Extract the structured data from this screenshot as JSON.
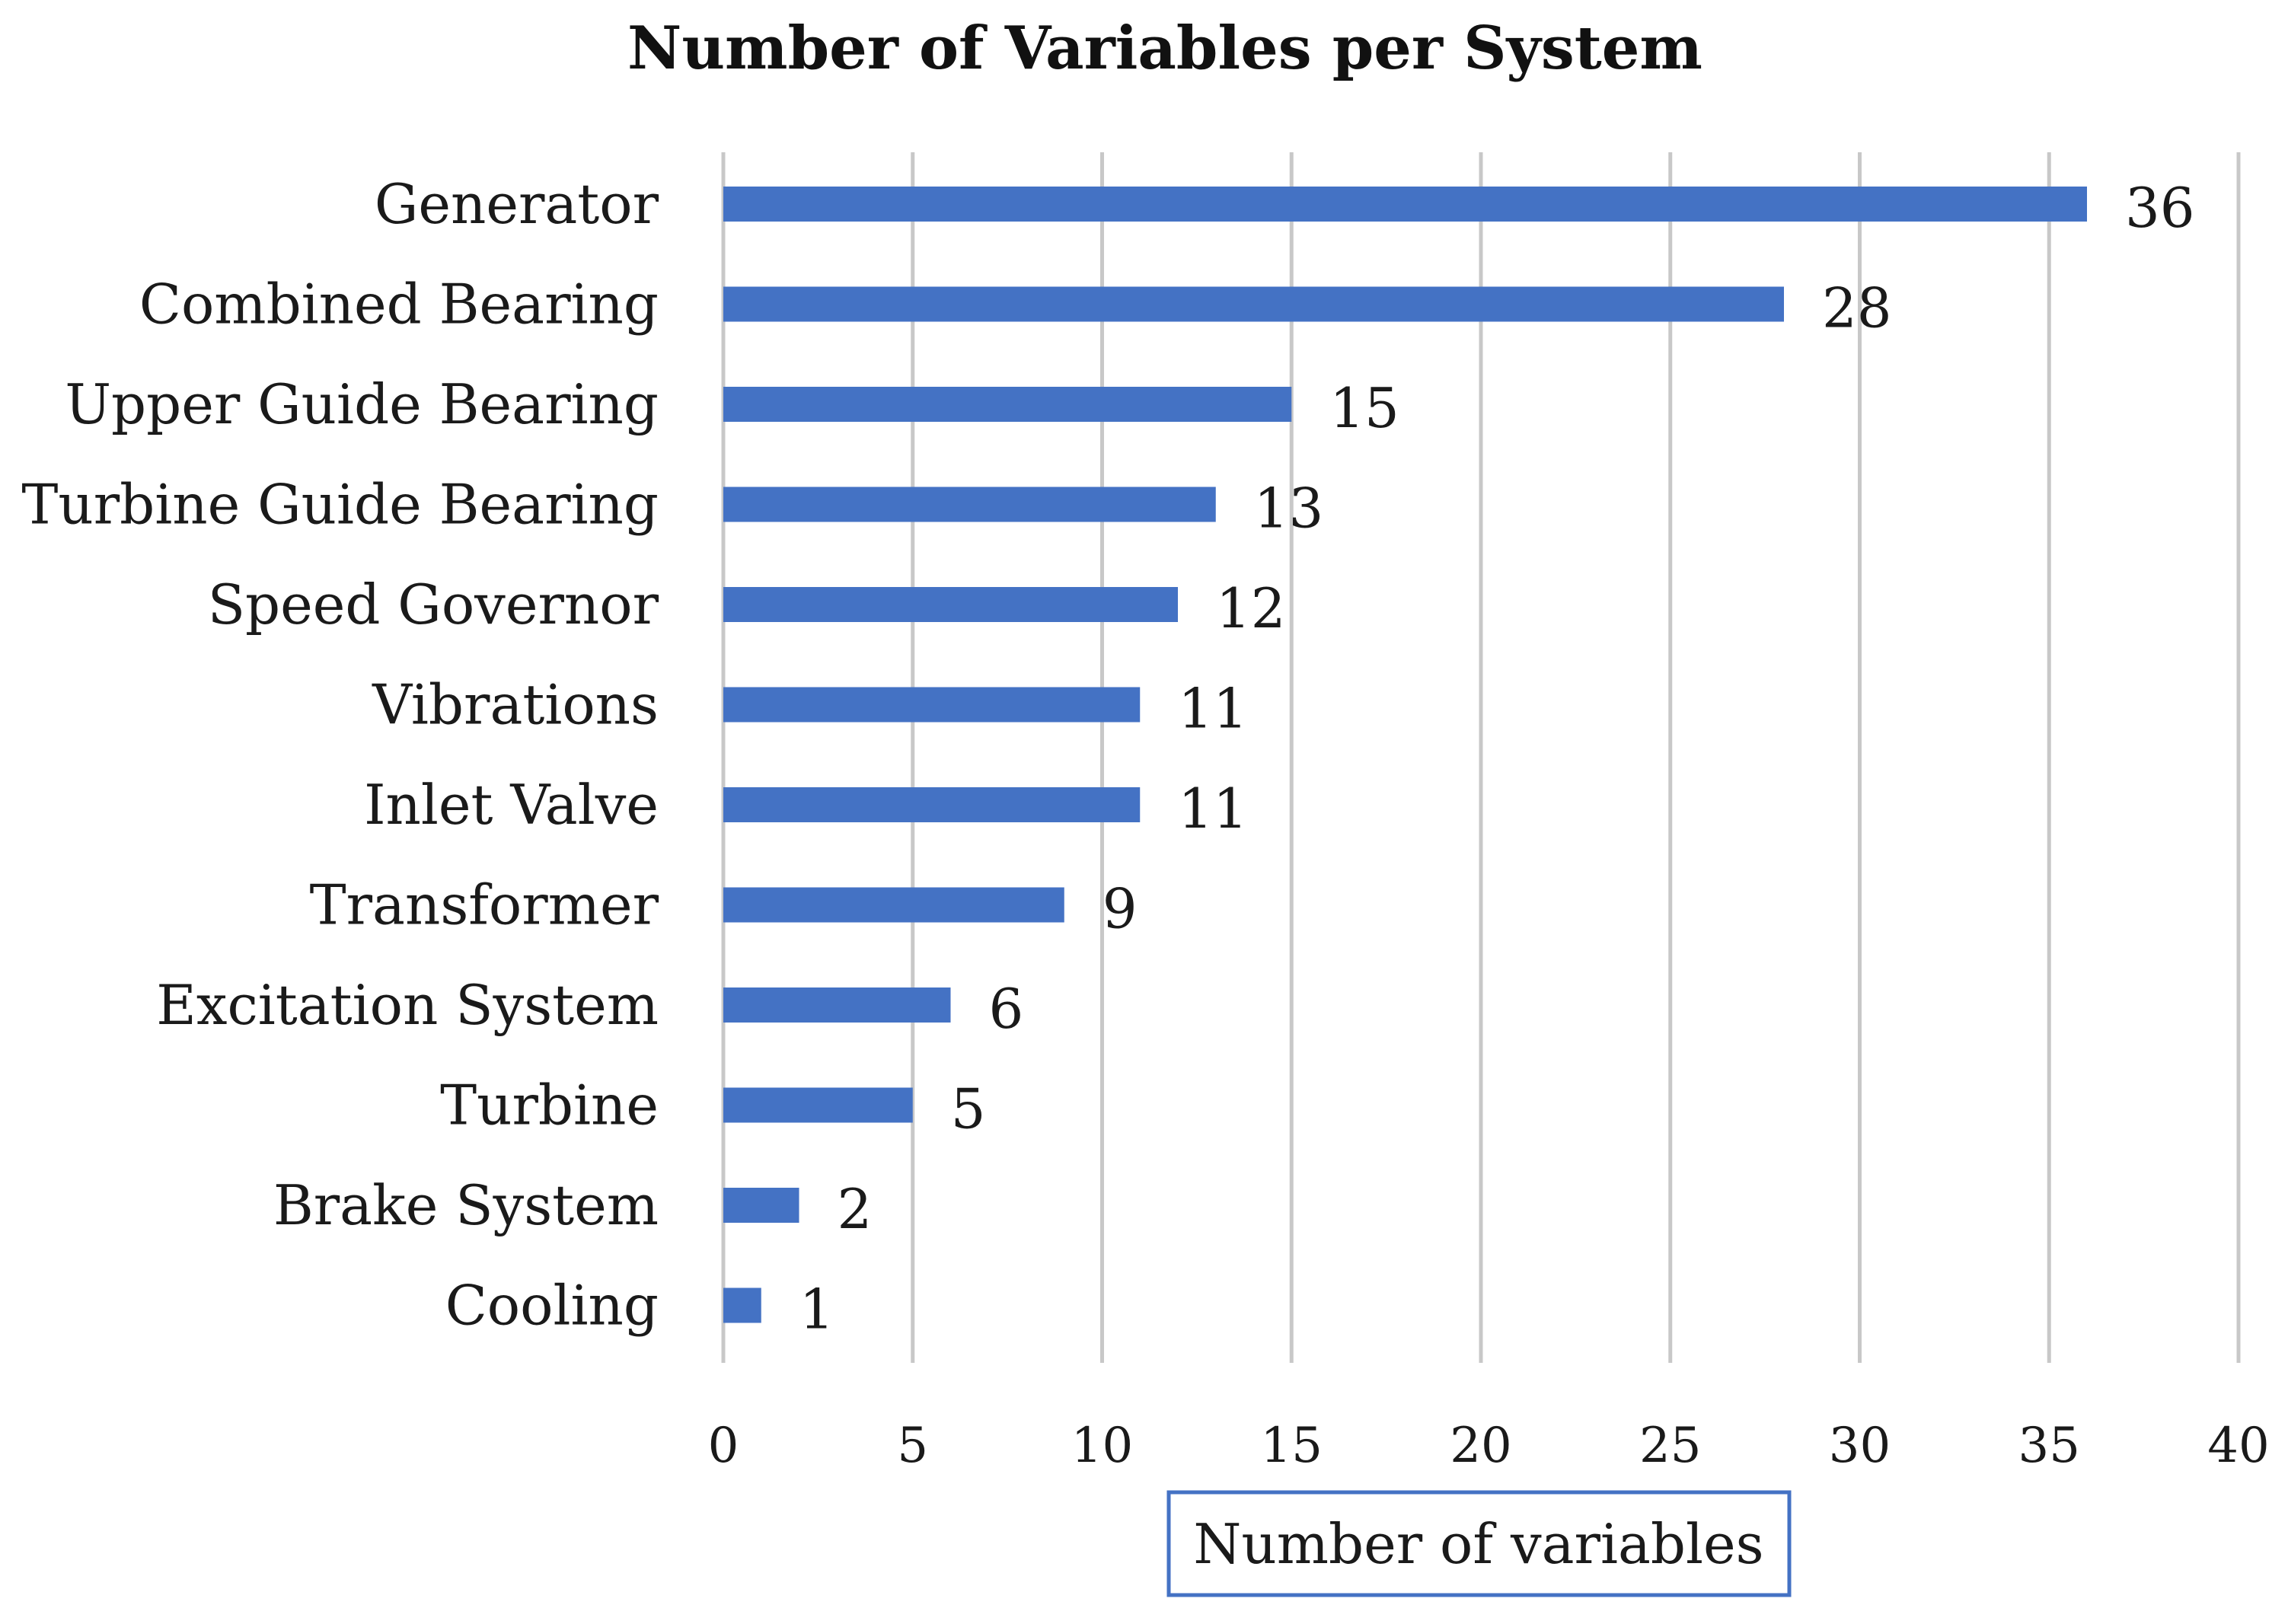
{
  "chart_data": {
    "type": "bar",
    "orientation": "horizontal",
    "title": "Number of Variables per System",
    "xlabel": "Number of variables",
    "ylabel": "",
    "categories": [
      "Generator",
      "Combined Bearing",
      "Upper Guide Bearing",
      "Turbine Guide Bearing",
      "Speed Governor",
      "Vibrations",
      "Inlet Valve",
      "Transformer",
      "Excitation System",
      "Turbine",
      "Brake System",
      "Cooling"
    ],
    "values": [
      36,
      28,
      15,
      13,
      12,
      11,
      11,
      9,
      6,
      5,
      2,
      1
    ],
    "xlim": [
      0,
      40
    ],
    "xticks": [
      0,
      5,
      10,
      15,
      20,
      25,
      30,
      35,
      40
    ],
    "grid": "vertical",
    "legend": "none",
    "bar_color": "#4472c4"
  }
}
